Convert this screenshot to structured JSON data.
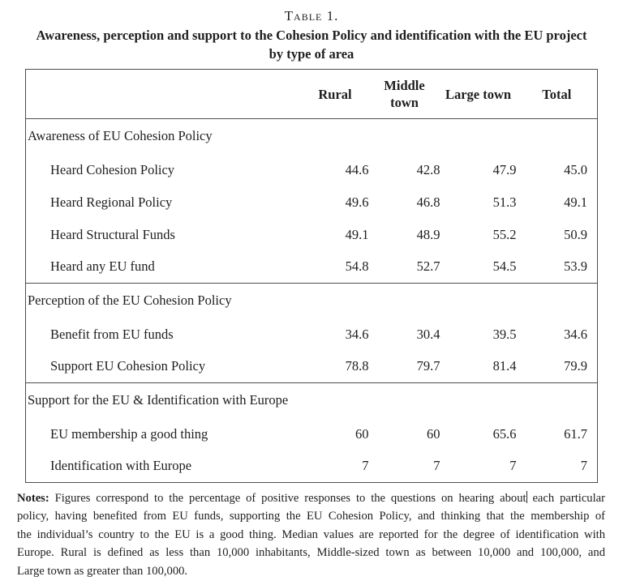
{
  "page": {
    "caption_label": "Table 1.",
    "title_line1": "Awareness, perception and support to the Cohesion Policy and identification with the EU project",
    "title_line2": "by type of area"
  },
  "table": {
    "col_headers": [
      "Rural",
      "Middle town",
      "Large town",
      "Total"
    ],
    "sections": [
      {
        "header": "Awareness of EU Cohesion Policy",
        "rows": [
          {
            "label": "Heard Cohesion Policy",
            "values": [
              "44.6",
              "42.8",
              "47.9",
              "45.0"
            ]
          },
          {
            "label": "Heard Regional Policy",
            "values": [
              "49.6",
              "46.8",
              "51.3",
              "49.1"
            ]
          },
          {
            "label": "Heard Structural Funds",
            "values": [
              "49.1",
              "48.9",
              "55.2",
              "50.9"
            ]
          },
          {
            "label": "Heard any EU fund",
            "values": [
              "54.8",
              "52.7",
              "54.5",
              "53.9"
            ]
          }
        ]
      },
      {
        "header": "Perception of the EU Cohesion Policy",
        "rows": [
          {
            "label": "Benefit from EU funds",
            "values": [
              "34.6",
              "30.4",
              "39.5",
              "34.6"
            ]
          },
          {
            "label": "Support EU Cohesion Policy",
            "values": [
              "78.8",
              "79.7",
              "81.4",
              "79.9"
            ]
          }
        ]
      },
      {
        "header": "Support for the EU & Identification with Europe",
        "rows": [
          {
            "label": "EU membership a good thing",
            "values": [
              "60",
              "60",
              "65.6",
              "61.7"
            ]
          },
          {
            "label": "Identification with Europe",
            "values": [
              "7",
              "7",
              "7",
              "7"
            ]
          }
        ]
      }
    ]
  },
  "notes": {
    "label": "Notes:",
    "line1_before_caret": " Figures correspond to the percentage of positive responses to the questions on hearing about",
    "line1_after_caret": " each particular",
    "line2": "policy, having benefited from EU funds, supporting the EU Cohesion Policy, and thinking that the membership of",
    "line3": "the individual’s country to the EU is a good thing. Median values are reported for the degree of identification with",
    "line4": "Europe. Rural is defined as less than 10,000 inhabitants, Middle-sized town as between 10,000 and 100,000, and",
    "line5": "Large town as greater than 100,000."
  }
}
